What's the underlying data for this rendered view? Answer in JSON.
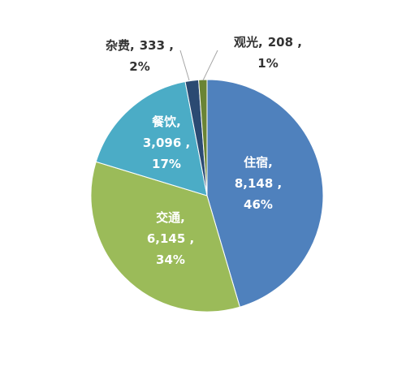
{
  "chart_data": {
    "type": "pie",
    "categories": [
      "住宿",
      "交通",
      "餐饮",
      "杂费",
      "观光"
    ],
    "values": [
      8148,
      6145,
      3096,
      333,
      208
    ],
    "value_labels": [
      "8,148",
      "6,145",
      "3,096",
      "333",
      "208"
    ],
    "percents": [
      46,
      34,
      17,
      2,
      1
    ],
    "percent_labels": [
      "46%",
      "34%",
      "17%",
      "2%",
      "1%"
    ],
    "colors": [
      "#4f81bd",
      "#9bbb59",
      "#4bacc6",
      "#2b4a72",
      "#6a8434"
    ],
    "label_separator": ",",
    "value_separator": " ,"
  }
}
